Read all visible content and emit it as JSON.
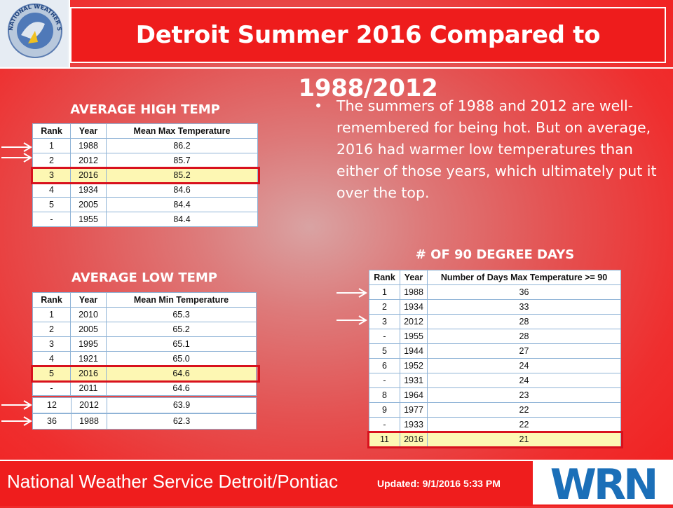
{
  "header": {
    "title": "Detroit Summer 2016 Compared to 1988/2012",
    "logo_text": "NATIONAL WEATHER SERVICE"
  },
  "high": {
    "title": "AVERAGE HIGH TEMP",
    "headers": [
      "Rank",
      "Year",
      "Mean Max Temperature"
    ],
    "rows": [
      [
        "1",
        "1988",
        "86.2"
      ],
      [
        "2",
        "2012",
        "85.7"
      ],
      [
        "3",
        "2016",
        "85.2"
      ],
      [
        "4",
        "1934",
        "84.6"
      ],
      [
        "5",
        "2005",
        "84.4"
      ],
      [
        "-",
        "1955",
        "84.4"
      ]
    ]
  },
  "low": {
    "title": "AVERAGE LOW TEMP",
    "headers": [
      "Rank",
      "Year",
      "Mean Min Temperature"
    ],
    "rows": [
      [
        "1",
        "2010",
        "65.3"
      ],
      [
        "2",
        "2005",
        "65.2"
      ],
      [
        "3",
        "1995",
        "65.1"
      ],
      [
        "4",
        "1921",
        "65.0"
      ],
      [
        "5",
        "2016",
        "64.6"
      ],
      [
        "-",
        "2011",
        "64.6"
      ]
    ],
    "extra": [
      [
        "12",
        "2012",
        "63.9"
      ],
      [
        "36",
        "1988",
        "62.3"
      ]
    ]
  },
  "days90": {
    "title": "# OF 90 DEGREE DAYS",
    "headers": [
      "Rank",
      "Year",
      "Number of Days Max Temperature >= 90"
    ],
    "rows": [
      [
        "1",
        "1988",
        "36"
      ],
      [
        "2",
        "1934",
        "33"
      ],
      [
        "3",
        "2012",
        "28"
      ],
      [
        "-",
        "1955",
        "28"
      ],
      [
        "5",
        "1944",
        "27"
      ],
      [
        "6",
        "1952",
        "24"
      ],
      [
        "-",
        "1931",
        "24"
      ],
      [
        "8",
        "1964",
        "23"
      ],
      [
        "9",
        "1977",
        "22"
      ],
      [
        "-",
        "1933",
        "22"
      ],
      [
        "11",
        "2016",
        "21"
      ]
    ]
  },
  "bullet": "The summers of 1988 and 2012 are well-remembered for being hot. But on average, 2016 had warmer low temperatures than either of those years, which ultimately put it over the top.",
  "footer": {
    "org": "National Weather Service Detroit/Pontiac",
    "updated_label": "Updated:",
    "updated_value": "9/1/2016 5:33 PM",
    "logo_text": "WRN"
  },
  "colors": {
    "background": "#ef2e2e",
    "highlight_border": "#d8111d",
    "highlight_fill": "#fdf7b3"
  }
}
